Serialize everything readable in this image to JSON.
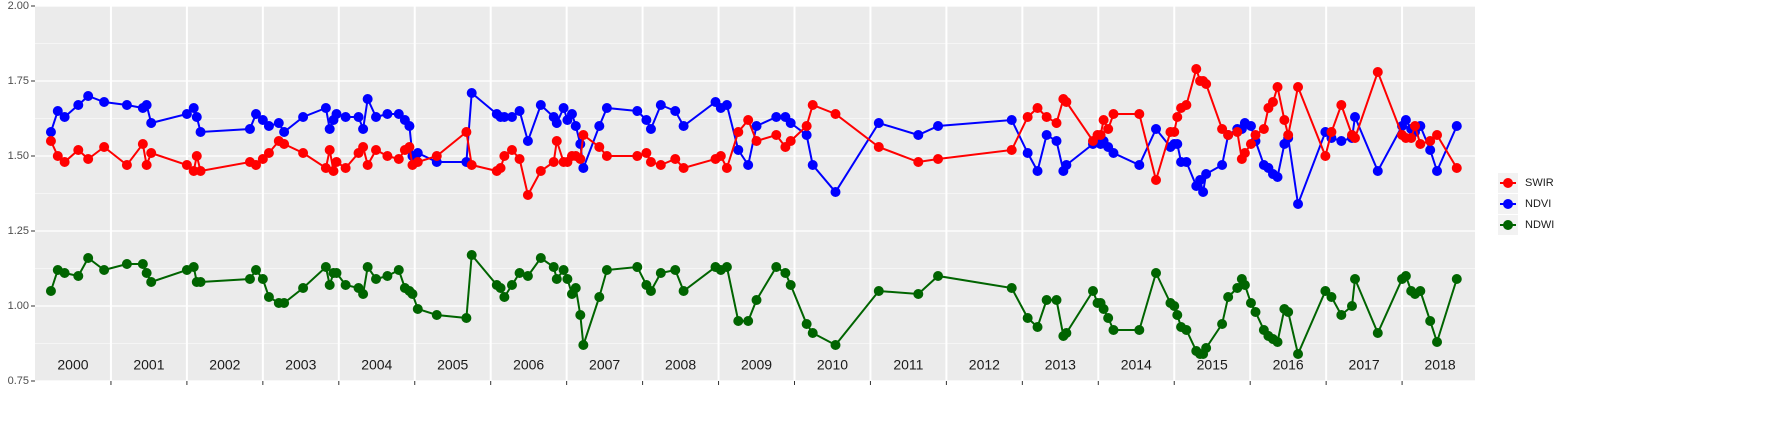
{
  "chart_data": {
    "type": "line",
    "x": [
      2000.21,
      2000.3,
      2000.39,
      2000.57,
      2000.7,
      2000.91,
      2001.21,
      2001.42,
      2001.47,
      2001.53,
      2002.0,
      2002.09,
      2002.13,
      2002.18,
      2002.83,
      2002.91,
      2003.0,
      2003.08,
      2003.21,
      2003.28,
      2003.53,
      2003.83,
      2003.88,
      2003.93,
      2003.97,
      2004.09,
      2004.26,
      2004.32,
      2004.38,
      2004.49,
      2004.64,
      2004.79,
      2004.87,
      2004.93,
      2004.97,
      2005.04,
      2005.29,
      2005.68,
      2005.75,
      2006.08,
      2006.13,
      2006.18,
      2006.28,
      2006.38,
      2006.49,
      2006.66,
      2006.83,
      2006.87,
      2006.96,
      2007.01,
      2007.07,
      2007.12,
      2007.18,
      2007.22,
      2007.43,
      2007.53,
      2007.93,
      2008.05,
      2008.11,
      2008.24,
      2008.43,
      2008.54,
      2008.96,
      2009.03,
      2009.11,
      2009.26,
      2009.39,
      2009.5,
      2009.76,
      2009.88,
      2009.95,
      2010.16,
      2010.24,
      2010.54,
      2011.11,
      2011.63,
      2011.89,
      2012.86,
      2013.07,
      2013.2,
      2013.32,
      2013.45,
      2013.54,
      2013.58,
      2013.93,
      2013.99,
      2014.03,
      2014.07,
      2014.13,
      2014.2,
      2014.54,
      2014.76,
      2014.95,
      2015.0,
      2015.04,
      2015.09,
      2015.16,
      2015.29,
      2015.34,
      2015.38,
      2015.42,
      2015.63,
      2015.71,
      2015.83,
      2015.89,
      2015.93,
      2016.01,
      2016.07,
      2016.18,
      2016.24,
      2016.3,
      2016.36,
      2016.45,
      2016.5,
      2016.63,
      2016.99,
      2017.07,
      2017.2,
      2017.34,
      2017.38,
      2017.68,
      2018.0,
      2018.05,
      2018.12,
      2018.17,
      2018.24,
      2018.37,
      2018.46,
      2018.72
    ],
    "series": [
      {
        "name": "SWIR",
        "color": "#ff0000",
        "values": [
          1.55,
          1.5,
          1.48,
          1.52,
          1.49,
          1.53,
          1.47,
          1.54,
          1.47,
          1.51,
          1.47,
          1.45,
          1.5,
          1.45,
          1.48,
          1.47,
          1.49,
          1.51,
          1.55,
          1.54,
          1.51,
          1.46,
          1.52,
          1.45,
          1.48,
          1.46,
          1.51,
          1.53,
          1.47,
          1.52,
          1.5,
          1.49,
          1.52,
          1.53,
          1.47,
          1.48,
          1.5,
          1.58,
          1.47,
          1.45,
          1.46,
          1.5,
          1.52,
          1.49,
          1.37,
          1.45,
          1.48,
          1.55,
          1.48,
          1.48,
          1.5,
          1.5,
          1.49,
          1.57,
          1.53,
          1.5,
          1.5,
          1.51,
          1.48,
          1.47,
          1.49,
          1.46,
          1.49,
          1.5,
          1.46,
          1.58,
          1.62,
          1.55,
          1.57,
          1.53,
          1.55,
          1.6,
          1.67,
          1.64,
          1.53,
          1.48,
          1.49,
          1.52,
          1.63,
          1.66,
          1.63,
          1.61,
          1.69,
          1.68,
          1.55,
          1.57,
          1.57,
          1.62,
          1.59,
          1.64,
          1.64,
          1.42,
          1.58,
          1.58,
          1.63,
          1.66,
          1.67,
          1.79,
          1.75,
          1.75,
          1.74,
          1.59,
          1.57,
          1.58,
          1.49,
          1.51,
          1.54,
          1.57,
          1.59,
          1.66,
          1.68,
          1.73,
          1.62,
          1.57,
          1.73,
          1.5,
          1.58,
          1.67,
          1.57,
          1.56,
          1.78,
          1.57,
          1.56,
          1.56,
          1.6,
          1.54,
          1.55,
          1.57,
          1.46
        ]
      },
      {
        "name": "NDVI",
        "color": "#0000ff",
        "values": [
          1.58,
          1.65,
          1.63,
          1.67,
          1.7,
          1.68,
          1.67,
          1.66,
          1.67,
          1.61,
          1.64,
          1.66,
          1.63,
          1.58,
          1.59,
          1.64,
          1.62,
          1.6,
          1.61,
          1.58,
          1.63,
          1.66,
          1.59,
          1.62,
          1.64,
          1.63,
          1.63,
          1.59,
          1.69,
          1.63,
          1.64,
          1.64,
          1.62,
          1.6,
          1.5,
          1.51,
          1.48,
          1.48,
          1.71,
          1.64,
          1.63,
          1.63,
          1.63,
          1.65,
          1.55,
          1.67,
          1.63,
          1.61,
          1.66,
          1.62,
          1.64,
          1.6,
          1.54,
          1.46,
          1.6,
          1.66,
          1.65,
          1.62,
          1.59,
          1.67,
          1.65,
          1.6,
          1.68,
          1.66,
          1.67,
          1.52,
          1.47,
          1.6,
          1.63,
          1.63,
          1.61,
          1.57,
          1.47,
          1.38,
          1.61,
          1.57,
          1.6,
          1.62,
          1.51,
          1.45,
          1.57,
          1.55,
          1.45,
          1.47,
          1.54,
          1.55,
          1.54,
          1.55,
          1.53,
          1.51,
          1.47,
          1.59,
          1.53,
          1.54,
          1.54,
          1.48,
          1.48,
          1.4,
          1.42,
          1.38,
          1.44,
          1.47,
          1.57,
          1.59,
          1.59,
          1.61,
          1.6,
          1.55,
          1.47,
          1.46,
          1.44,
          1.43,
          1.54,
          1.56,
          1.34,
          1.58,
          1.56,
          1.55,
          1.56,
          1.63,
          1.45,
          1.6,
          1.62,
          1.59,
          1.58,
          1.6,
          1.52,
          1.45,
          1.6
        ]
      },
      {
        "name": "NDWI",
        "color": "#006400",
        "values": [
          1.05,
          1.12,
          1.11,
          1.1,
          1.16,
          1.12,
          1.14,
          1.14,
          1.11,
          1.08,
          1.12,
          1.13,
          1.08,
          1.08,
          1.09,
          1.12,
          1.09,
          1.03,
          1.01,
          1.01,
          1.06,
          1.13,
          1.07,
          1.11,
          1.11,
          1.07,
          1.06,
          1.04,
          1.13,
          1.09,
          1.1,
          1.12,
          1.06,
          1.05,
          1.04,
          0.99,
          0.97,
          0.96,
          1.17,
          1.07,
          1.06,
          1.03,
          1.07,
          1.11,
          1.1,
          1.16,
          1.13,
          1.09,
          1.12,
          1.09,
          1.04,
          1.06,
          0.97,
          0.87,
          1.03,
          1.12,
          1.13,
          1.07,
          1.05,
          1.11,
          1.12,
          1.05,
          1.13,
          1.12,
          1.13,
          0.95,
          0.95,
          1.02,
          1.13,
          1.11,
          1.07,
          0.94,
          0.91,
          0.87,
          1.05,
          1.04,
          1.1,
          1.06,
          0.96,
          0.93,
          1.02,
          1.02,
          0.9,
          0.91,
          1.05,
          1.01,
          1.01,
          0.99,
          0.96,
          0.92,
          0.92,
          1.11,
          1.01,
          1.0,
          0.97,
          0.93,
          0.92,
          0.85,
          0.84,
          0.84,
          0.86,
          0.94,
          1.03,
          1.06,
          1.09,
          1.07,
          1.01,
          0.98,
          0.92,
          0.9,
          0.89,
          0.88,
          0.99,
          0.98,
          0.84,
          1.05,
          1.03,
          0.97,
          1.0,
          1.09,
          0.91,
          1.09,
          1.1,
          1.05,
          1.04,
          1.05,
          0.95,
          0.88,
          1.09
        ]
      }
    ],
    "xlim": [
      2000,
      2018.96
    ],
    "year_bands": [
      {
        "value": 2000,
        "label": "2000"
      },
      {
        "value": 2001,
        "label": "2001"
      },
      {
        "value": 2002,
        "label": "2002"
      },
      {
        "value": 2003,
        "label": "2003"
      },
      {
        "value": 2004,
        "label": "2004"
      },
      {
        "value": 2005,
        "label": "2005"
      },
      {
        "value": 2006,
        "label": "2006"
      },
      {
        "value": 2007,
        "label": "2007"
      },
      {
        "value": 2008,
        "label": "2008"
      },
      {
        "value": 2009,
        "label": "2009"
      },
      {
        "value": 2010,
        "label": "2010"
      },
      {
        "value": 2011,
        "label": "2011"
      },
      {
        "value": 2012,
        "label": "2012"
      },
      {
        "value": 2013,
        "label": "2013"
      },
      {
        "value": 2014,
        "label": "2014"
      },
      {
        "value": 2015,
        "label": "2015"
      },
      {
        "value": 2016,
        "label": "2016"
      },
      {
        "value": 2017,
        "label": "2017"
      },
      {
        "value": 2018,
        "label": "2018"
      }
    ],
    "ylim": [
      0.75,
      2.0
    ],
    "yticks": [
      {
        "value": 0.75,
        "label": "0.75"
      },
      {
        "value": 1.0,
        "label": "1.00"
      },
      {
        "value": 1.25,
        "label": "1.25"
      },
      {
        "value": 1.5,
        "label": "1.50"
      },
      {
        "value": 1.75,
        "label": "1.75"
      },
      {
        "value": 2.0,
        "label": "2.00"
      }
    ],
    "grid": true,
    "legend_position": "right"
  }
}
